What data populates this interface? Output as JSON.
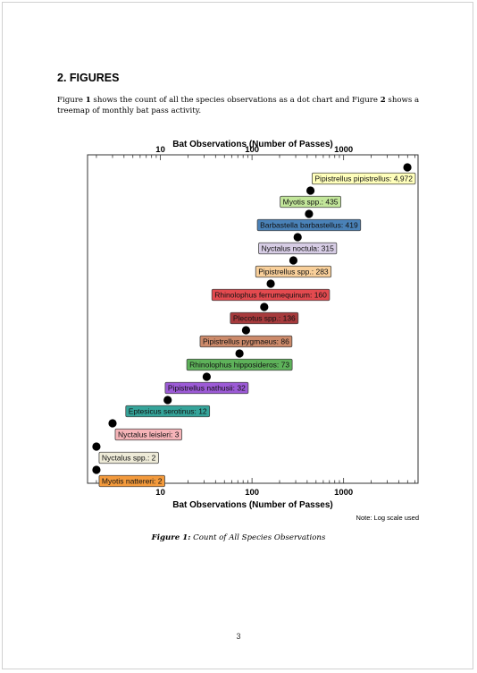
{
  "section": {
    "number": "2.",
    "title": "FIGURES"
  },
  "intro": {
    "part1": "Figure ",
    "fig1": "1",
    "part2": " shows the count of all the species observations as a dot chart and Figure ",
    "fig2": "2",
    "part3": " shows a treemap of monthly bat pass activity."
  },
  "chart_data": {
    "type": "scatter",
    "title": "Bat Observations (Number of Passes)",
    "xlabel": "Bat Observations (Number of Passes)",
    "x_scale": "log",
    "xlim": [
      1.6,
      6500
    ],
    "x_ticks": [
      10,
      100,
      1000
    ],
    "x_tick_labels": [
      "10",
      "100",
      "1000"
    ],
    "note": "Note: Log scale used",
    "grid": false,
    "points": [
      {
        "species": "Pipistrellus pipistrellus",
        "label": "Pipistrellus pipistrellus: 4,972",
        "value": 4972,
        "color": "#ffffbb"
      },
      {
        "species": "Myotis spp.",
        "label": "Myotis spp.: 435",
        "value": 435,
        "color": "#c2e69a"
      },
      {
        "species": "Barbastella barbastellus",
        "label": "Barbastella barbastellus: 419",
        "value": 419,
        "color": "#4a82b8"
      },
      {
        "species": "Nyctalus noctula",
        "label": "Nyctalus noctula: 315",
        "value": 315,
        "color": "#d6cce4"
      },
      {
        "species": "Pipistrellus spp.",
        "label": "Pipistrellus spp.: 283",
        "value": 283,
        "color": "#f8cf9a"
      },
      {
        "species": "Rhinolophus ferrumequinum",
        "label": "Rhinolophus ferrumequinum: 160",
        "value": 160,
        "color": "#e34a4f"
      },
      {
        "species": "Plecotus spp.",
        "label": "Plecotus spp.: 136",
        "value": 136,
        "color": "#a73a3c"
      },
      {
        "species": "Pipistrellus pygmaeus",
        "label": "Pipistrellus pygmaeus: 86",
        "value": 86,
        "color": "#cc8a6a"
      },
      {
        "species": "Rhinolophus hipposideros",
        "label": "Rhinolophus hipposideros: 73",
        "value": 73,
        "color": "#5eb25a"
      },
      {
        "species": "Pipistrellus nathusii",
        "label": "Pipistrellus nathusii: 32",
        "value": 32,
        "color": "#9c5ad6"
      },
      {
        "species": "Eptesicus serotinus",
        "label": "Eptesicus serotinus: 12",
        "value": 12,
        "color": "#35a49a"
      },
      {
        "species": "Nyctalus leisleri",
        "label": "Nyctalus leisleri: 3",
        "value": 3,
        "color": "#f6b4b8"
      },
      {
        "species": "Nyctalus spp.",
        "label": "Nyctalus spp.: 2",
        "value": 2,
        "color": "#eeebd8"
      },
      {
        "species": "Myotis nattereri",
        "label": "Myotis nattereri: 2",
        "value": 2,
        "color": "#f39a3c"
      }
    ]
  },
  "caption": {
    "prefix": "Figure 1:",
    "text": " Count of All Species Observations"
  },
  "page_number": "3"
}
